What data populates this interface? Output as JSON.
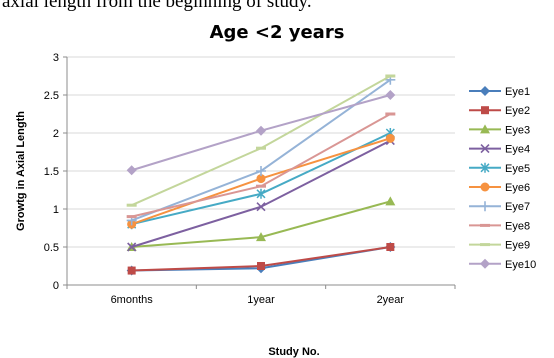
{
  "caption_fragment": "axial length from the beginning of study.",
  "chart_data": {
    "type": "line",
    "title": "Age <2 years",
    "xlabel": "Study No.",
    "ylabel": "Growtg in Axial Length",
    "categories": [
      "6months",
      "1year",
      "2year"
    ],
    "ylim": [
      0,
      3
    ],
    "yticks": [
      "0",
      "0.5",
      "1",
      "1.5",
      "2",
      "2.5",
      "3"
    ],
    "grid": true,
    "legend_position": "right",
    "series": [
      {
        "name": "Eye1",
        "values": [
          0.19,
          0.22,
          0.5
        ],
        "color": "#4a7ebb",
        "marker": "diamond"
      },
      {
        "name": "Eye2",
        "values": [
          0.19,
          0.25,
          0.5
        ],
        "color": "#be4b48",
        "marker": "square"
      },
      {
        "name": "Eye3",
        "values": [
          0.5,
          0.63,
          1.1
        ],
        "color": "#98b954",
        "marker": "triangle"
      },
      {
        "name": "Eye4",
        "values": [
          0.5,
          1.03,
          1.9
        ],
        "color": "#7d60a0",
        "marker": "x"
      },
      {
        "name": "Eye5",
        "values": [
          0.8,
          1.2,
          2.0
        ],
        "color": "#46aac5",
        "marker": "star"
      },
      {
        "name": "Eye6",
        "values": [
          0.8,
          1.4,
          1.93
        ],
        "color": "#f69240",
        "marker": "circle"
      },
      {
        "name": "Eye7",
        "values": [
          0.85,
          1.5,
          2.7
        ],
        "color": "#95b3d7",
        "marker": "plus"
      },
      {
        "name": "Eye8",
        "values": [
          0.9,
          1.3,
          2.25
        ],
        "color": "#d99694",
        "marker": "dash"
      },
      {
        "name": "Eye9",
        "values": [
          1.05,
          1.8,
          2.75
        ],
        "color": "#c3d69b",
        "marker": "dash"
      },
      {
        "name": "Eye10",
        "values": [
          1.51,
          2.03,
          2.5
        ],
        "color": "#b3a2c7",
        "marker": "diamond"
      }
    ]
  }
}
